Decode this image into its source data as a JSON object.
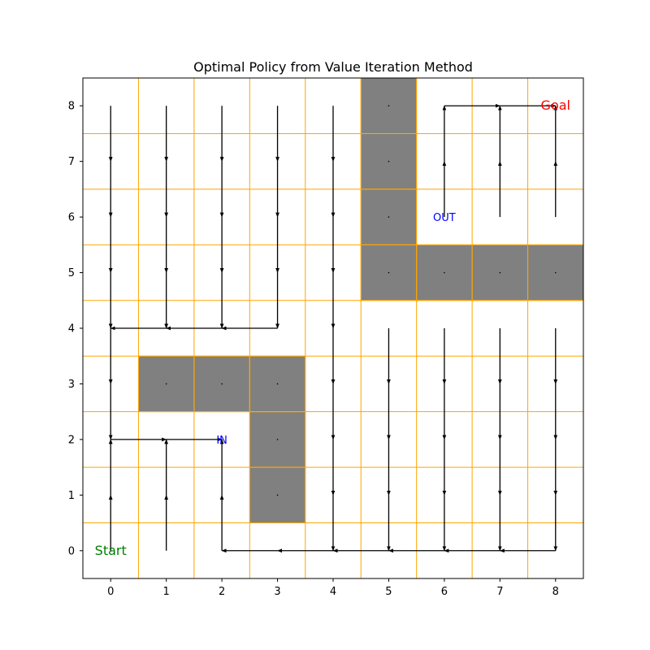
{
  "chart_data": {
    "type": "grid-policy",
    "title": "Optimal Policy from Value Iteration Method",
    "grid_size": [
      9,
      9
    ],
    "x_ticks": [
      "0",
      "1",
      "2",
      "3",
      "4",
      "5",
      "6",
      "7",
      "8"
    ],
    "y_ticks": [
      "0",
      "1",
      "2",
      "3",
      "4",
      "5",
      "6",
      "7",
      "8"
    ],
    "xlim": [
      -0.5,
      8.5
    ],
    "ylim": [
      -0.5,
      8.5
    ],
    "grid_line_color": "#ffa500",
    "obstacle_color": "#808080",
    "obstacles": [
      [
        5,
        8
      ],
      [
        5,
        7
      ],
      [
        5,
        6
      ],
      [
        5,
        5
      ],
      [
        6,
        5
      ],
      [
        7,
        5
      ],
      [
        8,
        5
      ],
      [
        1,
        3
      ],
      [
        2,
        3
      ],
      [
        3,
        3
      ],
      [
        3,
        2
      ],
      [
        3,
        1
      ]
    ],
    "labels": {
      "start": {
        "text": "Start",
        "x": 0,
        "y": 0,
        "color": "#008000"
      },
      "goal": {
        "text": "Goal",
        "x": 8,
        "y": 8,
        "color": "#ff0000"
      },
      "in": {
        "text": "IN",
        "x": 2,
        "y": 2,
        "color": "#0000ff"
      },
      "out": {
        "text": "OUT",
        "x": 6,
        "y": 6,
        "color": "#0000ff"
      }
    },
    "policy": [
      [
        0,
        8,
        "down"
      ],
      [
        1,
        8,
        "down"
      ],
      [
        2,
        8,
        "down"
      ],
      [
        3,
        8,
        "down"
      ],
      [
        4,
        8,
        "down"
      ],
      [
        0,
        7,
        "down"
      ],
      [
        1,
        7,
        "down"
      ],
      [
        2,
        7,
        "down"
      ],
      [
        3,
        7,
        "down"
      ],
      [
        4,
        7,
        "down"
      ],
      [
        0,
        6,
        "down"
      ],
      [
        1,
        6,
        "down"
      ],
      [
        2,
        6,
        "down"
      ],
      [
        3,
        6,
        "down"
      ],
      [
        4,
        6,
        "down"
      ],
      [
        0,
        5,
        "down"
      ],
      [
        1,
        5,
        "down"
      ],
      [
        2,
        5,
        "down"
      ],
      [
        3,
        5,
        "down"
      ],
      [
        4,
        5,
        "down"
      ],
      [
        0,
        4,
        "down"
      ],
      [
        1,
        4,
        "left"
      ],
      [
        2,
        4,
        "left"
      ],
      [
        3,
        4,
        "left"
      ],
      [
        4,
        4,
        "down"
      ],
      [
        5,
        4,
        "down"
      ],
      [
        6,
        4,
        "down"
      ],
      [
        7,
        4,
        "down"
      ],
      [
        8,
        4,
        "down"
      ],
      [
        0,
        3,
        "down"
      ],
      [
        4,
        3,
        "down"
      ],
      [
        5,
        3,
        "down"
      ],
      [
        6,
        3,
        "down"
      ],
      [
        7,
        3,
        "down"
      ],
      [
        8,
        3,
        "down"
      ],
      [
        0,
        2,
        "right"
      ],
      [
        1,
        2,
        "right"
      ],
      [
        4,
        2,
        "down"
      ],
      [
        5,
        2,
        "down"
      ],
      [
        6,
        2,
        "down"
      ],
      [
        7,
        2,
        "down"
      ],
      [
        8,
        2,
        "down"
      ],
      [
        0,
        1,
        "up"
      ],
      [
        1,
        1,
        "up"
      ],
      [
        2,
        1,
        "up"
      ],
      [
        4,
        1,
        "down"
      ],
      [
        5,
        1,
        "down"
      ],
      [
        6,
        1,
        "down"
      ],
      [
        7,
        1,
        "down"
      ],
      [
        8,
        1,
        "down"
      ],
      [
        0,
        0,
        "up"
      ],
      [
        1,
        0,
        "up"
      ],
      [
        2,
        0,
        "up"
      ],
      [
        3,
        0,
        "left"
      ],
      [
        4,
        0,
        "left"
      ],
      [
        5,
        0,
        "left"
      ],
      [
        6,
        0,
        "left"
      ],
      [
        7,
        0,
        "left"
      ],
      [
        8,
        0,
        "left"
      ],
      [
        6,
        6,
        "up"
      ],
      [
        7,
        6,
        "up"
      ],
      [
        8,
        6,
        "up"
      ],
      [
        6,
        7,
        "up"
      ],
      [
        7,
        7,
        "up"
      ],
      [
        8,
        7,
        "up"
      ],
      [
        6,
        8,
        "right"
      ],
      [
        7,
        8,
        "right"
      ]
    ]
  }
}
